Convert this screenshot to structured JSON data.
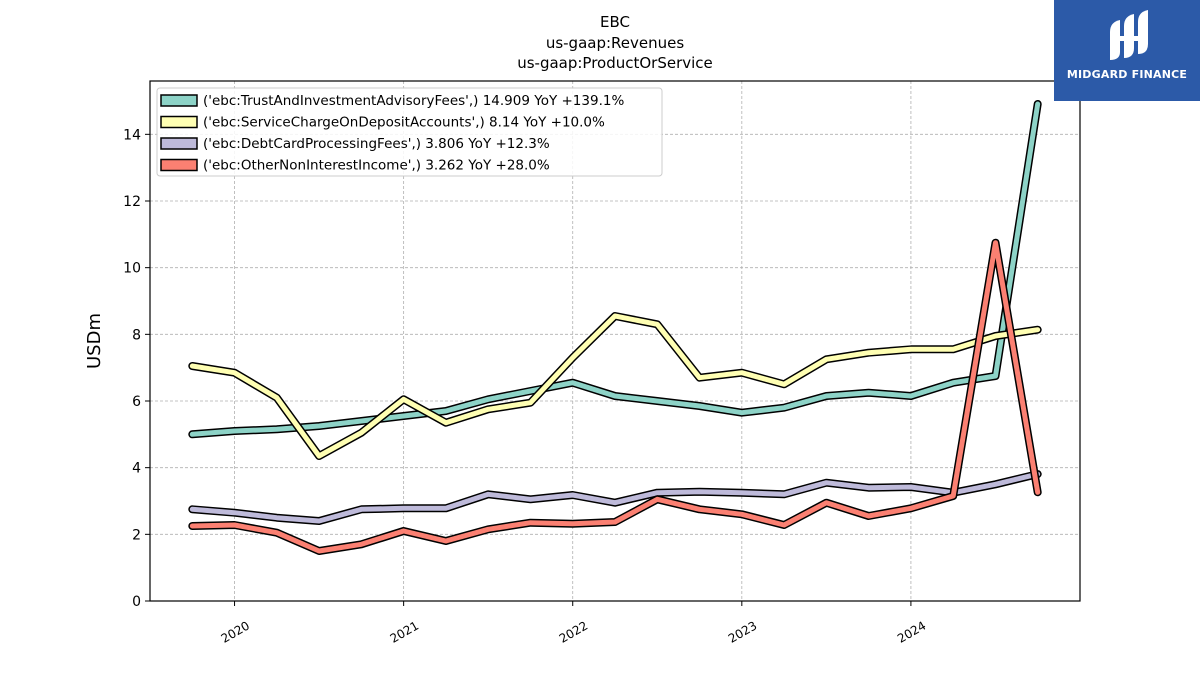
{
  "titles": [
    "EBC",
    "us-gaap:Revenues",
    "us-gaap:ProductOrService"
  ],
  "logo": {
    "text": "MIDGARD FINANCE"
  },
  "chart_data": {
    "type": "line",
    "ylabel": "USDm",
    "ylim": [
      0,
      15.6
    ],
    "yticks": [
      0,
      2,
      4,
      6,
      8,
      10,
      12,
      14
    ],
    "xlim": [
      2019.5,
      2025.0
    ],
    "xticks": [
      2020,
      2021,
      2022,
      2023,
      2024
    ],
    "grid": true,
    "legend_position": "top-left",
    "x": [
      2019.75,
      2020.0,
      2020.25,
      2020.5,
      2020.75,
      2021.0,
      2021.25,
      2021.5,
      2021.75,
      2022.0,
      2022.25,
      2022.5,
      2022.75,
      2023.0,
      2023.25,
      2023.5,
      2023.75,
      2024.0,
      2024.25,
      2024.5,
      2024.75
    ],
    "series": [
      {
        "name": "('ebc:TrustAndInvestmentAdvisoryFees',) 14.909 YoY +139.1%",
        "color": "#8dd3c7",
        "values": [
          5.0,
          5.1,
          5.15,
          5.25,
          5.4,
          5.55,
          5.7,
          6.05,
          6.3,
          6.55,
          6.15,
          6.0,
          5.85,
          5.65,
          5.8,
          6.15,
          6.25,
          6.15,
          6.55,
          6.75,
          14.909
        ]
      },
      {
        "name": "('ebc:ServiceChargeOnDepositAccounts',) 8.14 YoY +10.0%",
        "color": "#ffffb3",
        "values": [
          7.05,
          6.85,
          6.1,
          4.35,
          5.05,
          6.05,
          5.35,
          5.75,
          5.95,
          7.3,
          8.55,
          8.3,
          6.7,
          6.85,
          6.5,
          7.25,
          7.45,
          7.55,
          7.55,
          7.95,
          8.14
        ]
      },
      {
        "name": "('ebc:DebtCardProcessingFees',) 3.806 YoY +12.3%",
        "color": "#bebada",
        "values": [
          2.75,
          2.65,
          2.5,
          2.4,
          2.75,
          2.78,
          2.78,
          3.2,
          3.05,
          3.18,
          2.95,
          3.25,
          3.28,
          3.25,
          3.2,
          3.55,
          3.4,
          3.42,
          3.25,
          3.5,
          3.806
        ]
      },
      {
        "name": "('ebc:OtherNonInterestIncome',) 3.262 YoY +28.0%",
        "color": "#fb8072",
        "values": [
          2.25,
          2.28,
          2.05,
          1.5,
          1.7,
          2.1,
          1.8,
          2.15,
          2.35,
          2.32,
          2.37,
          3.05,
          2.75,
          2.6,
          2.28,
          2.95,
          2.55,
          2.78,
          3.15,
          10.75,
          3.262
        ]
      }
    ]
  }
}
